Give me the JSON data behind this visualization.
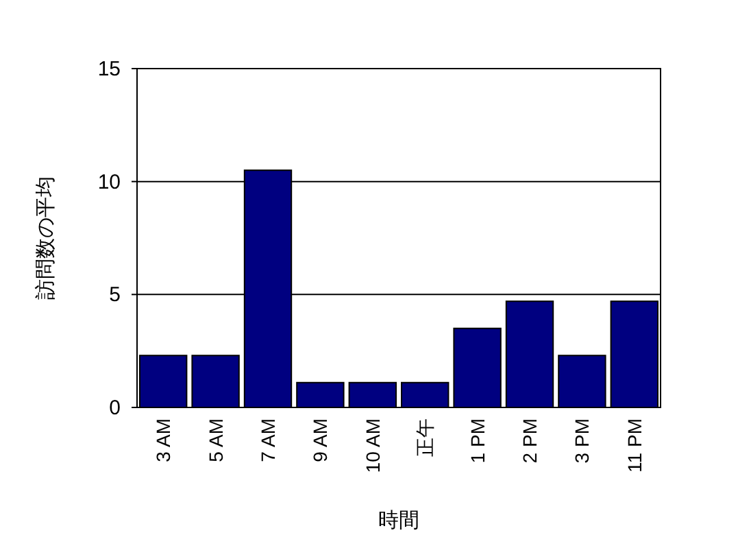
{
  "chart_data": {
    "type": "bar",
    "xlabel": "時間",
    "ylabel": "訪問数の平均",
    "categories": [
      "3 AM",
      "5 AM",
      "7 AM",
      "9 AM",
      "10 AM",
      "正午",
      "1 PM",
      "2 PM",
      "3 PM",
      "11 PM"
    ],
    "values": [
      2.3,
      2.3,
      10.5,
      1.1,
      1.1,
      1.1,
      3.5,
      4.7,
      2.3,
      4.7
    ],
    "color": "#000080",
    "ylim": [
      0,
      15
    ],
    "yticks": [
      0,
      5,
      10,
      15
    ],
    "grid": "y"
  }
}
